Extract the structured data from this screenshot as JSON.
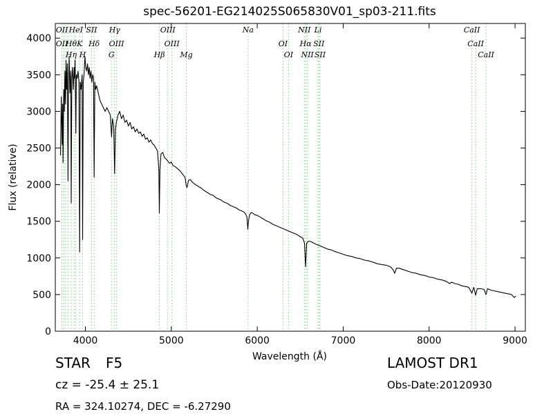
{
  "chart_data": {
    "type": "line",
    "title": "spec-56201-EG214025S065830V01_sp03-211.fits",
    "xlabel": "Wavelength (Å)",
    "ylabel": "Flux (relative)",
    "xlim": [
      3650,
      9120
    ],
    "ylim": [
      0,
      4200
    ],
    "xticks": [
      4000,
      5000,
      6000,
      7000,
      8000,
      9000
    ],
    "yticks": [
      0,
      500,
      1000,
      1500,
      2000,
      2500,
      3000,
      3500,
      4000
    ],
    "grid": false,
    "series": [
      {
        "color": "#000000",
        "points": [
          [
            3710,
            2400
          ],
          [
            3720,
            3200
          ],
          [
            3730,
            2550
          ],
          [
            3735,
            3100
          ],
          [
            3740,
            2300
          ],
          [
            3748,
            3300
          ],
          [
            3755,
            3000
          ],
          [
            3762,
            3550
          ],
          [
            3770,
            3100
          ],
          [
            3775,
            3700
          ],
          [
            3782,
            3300
          ],
          [
            3790,
            3650
          ],
          [
            3798,
            2050
          ],
          [
            3804,
            3400
          ],
          [
            3812,
            3750
          ],
          [
            3820,
            3250
          ],
          [
            3830,
            3550
          ],
          [
            3835,
            1750
          ],
          [
            3842,
            3450
          ],
          [
            3850,
            3600
          ],
          [
            3860,
            3300
          ],
          [
            3870,
            3600
          ],
          [
            3875,
            3450
          ],
          [
            3880,
            3700
          ],
          [
            3889,
            2700
          ],
          [
            3895,
            3500
          ],
          [
            3905,
            3450
          ],
          [
            3915,
            3550
          ],
          [
            3925,
            3400
          ],
          [
            3933,
            1080
          ],
          [
            3940,
            3400
          ],
          [
            3950,
            3300
          ],
          [
            3962,
            3500
          ],
          [
            3968,
            1250
          ],
          [
            3975,
            3400
          ],
          [
            3985,
            3500
          ],
          [
            3995,
            3750
          ],
          [
            4005,
            3600
          ],
          [
            4015,
            3550
          ],
          [
            4025,
            3650
          ],
          [
            4035,
            3500
          ],
          [
            4045,
            3600
          ],
          [
            4055,
            3450
          ],
          [
            4065,
            3550
          ],
          [
            4075,
            3400
          ],
          [
            4085,
            3500
          ],
          [
            4095,
            3450
          ],
          [
            4102,
            2100
          ],
          [
            4110,
            3400
          ],
          [
            4120,
            3300
          ],
          [
            4130,
            3350
          ],
          [
            4150,
            3250
          ],
          [
            4170,
            3150
          ],
          [
            4190,
            3100
          ],
          [
            4210,
            3050
          ],
          [
            4230,
            3000
          ],
          [
            4250,
            3050
          ],
          [
            4270,
            3000
          ],
          [
            4290,
            2950
          ],
          [
            4305,
            2650
          ],
          [
            4315,
            2900
          ],
          [
            4330,
            2800
          ],
          [
            4340,
            2150
          ],
          [
            4350,
            2750
          ],
          [
            4360,
            2850
          ],
          [
            4380,
            2950
          ],
          [
            4400,
            3000
          ],
          [
            4420,
            2900
          ],
          [
            4440,
            2950
          ],
          [
            4460,
            2850
          ],
          [
            4480,
            2880
          ],
          [
            4500,
            2800
          ],
          [
            4520,
            2850
          ],
          [
            4540,
            2760
          ],
          [
            4560,
            2790
          ],
          [
            4580,
            2720
          ],
          [
            4600,
            2760
          ],
          [
            4620,
            2700
          ],
          [
            4640,
            2720
          ],
          [
            4660,
            2660
          ],
          [
            4680,
            2690
          ],
          [
            4700,
            2620
          ],
          [
            4720,
            2640
          ],
          [
            4740,
            2580
          ],
          [
            4760,
            2610
          ],
          [
            4780,
            2560
          ],
          [
            4800,
            2540
          ],
          [
            4820,
            2500
          ],
          [
            4840,
            2460
          ],
          [
            4855,
            2200
          ],
          [
            4861,
            1610
          ],
          [
            4868,
            2200
          ],
          [
            4880,
            2420
          ],
          [
            4900,
            2440
          ],
          [
            4920,
            2370
          ],
          [
            4940,
            2350
          ],
          [
            4960,
            2320
          ],
          [
            4980,
            2290
          ],
          [
            5000,
            2310
          ],
          [
            5020,
            2260
          ],
          [
            5040,
            2250
          ],
          [
            5060,
            2230
          ],
          [
            5080,
            2210
          ],
          [
            5100,
            2190
          ],
          [
            5120,
            2160
          ],
          [
            5140,
            2130
          ],
          [
            5160,
            2100
          ],
          [
            5173,
            1990
          ],
          [
            5183,
            1960
          ],
          [
            5200,
            2060
          ],
          [
            5220,
            2070
          ],
          [
            5240,
            2040
          ],
          [
            5260,
            2020
          ],
          [
            5280,
            2000
          ],
          [
            5300,
            1990
          ],
          [
            5320,
            1970
          ],
          [
            5340,
            1960
          ],
          [
            5360,
            1940
          ],
          [
            5380,
            1920
          ],
          [
            5400,
            1910
          ],
          [
            5420,
            1890
          ],
          [
            5440,
            1880
          ],
          [
            5460,
            1860
          ],
          [
            5480,
            1860
          ],
          [
            5500,
            1840
          ],
          [
            5520,
            1820
          ],
          [
            5540,
            1810
          ],
          [
            5560,
            1800
          ],
          [
            5580,
            1790
          ],
          [
            5600,
            1770
          ],
          [
            5620,
            1760
          ],
          [
            5640,
            1750
          ],
          [
            5660,
            1740
          ],
          [
            5680,
            1720
          ],
          [
            5700,
            1710
          ],
          [
            5720,
            1700
          ],
          [
            5740,
            1690
          ],
          [
            5760,
            1680
          ],
          [
            5780,
            1660
          ],
          [
            5800,
            1650
          ],
          [
            5820,
            1640
          ],
          [
            5840,
            1630
          ],
          [
            5860,
            1610
          ],
          [
            5880,
            1560
          ],
          [
            5890,
            1390
          ],
          [
            5896,
            1480
          ],
          [
            5910,
            1590
          ],
          [
            5930,
            1620
          ],
          [
            5950,
            1610
          ],
          [
            5970,
            1590
          ],
          [
            6000,
            1580
          ],
          [
            6030,
            1560
          ],
          [
            6060,
            1540
          ],
          [
            6100,
            1510
          ],
          [
            6140,
            1490
          ],
          [
            6180,
            1460
          ],
          [
            6220,
            1440
          ],
          [
            6260,
            1420
          ],
          [
            6300,
            1400
          ],
          [
            6340,
            1380
          ],
          [
            6380,
            1360
          ],
          [
            6420,
            1340
          ],
          [
            6460,
            1320
          ],
          [
            6500,
            1290
          ],
          [
            6530,
            1270
          ],
          [
            6550,
            1200
          ],
          [
            6563,
            880
          ],
          [
            6575,
            1200
          ],
          [
            6600,
            1230
          ],
          [
            6630,
            1220
          ],
          [
            6660,
            1200
          ],
          [
            6700,
            1180
          ],
          [
            6740,
            1160
          ],
          [
            6780,
            1140
          ],
          [
            6820,
            1120
          ],
          [
            6860,
            1110
          ],
          [
            6900,
            1090
          ],
          [
            6950,
            1070
          ],
          [
            7000,
            1050
          ],
          [
            7050,
            1030
          ],
          [
            7100,
            1020
          ],
          [
            7150,
            1000
          ],
          [
            7200,
            990
          ],
          [
            7250,
            970
          ],
          [
            7300,
            960
          ],
          [
            7350,
            940
          ],
          [
            7400,
            920
          ],
          [
            7450,
            910
          ],
          [
            7500,
            900
          ],
          [
            7550,
            880
          ],
          [
            7580,
            840
          ],
          [
            7600,
            790
          ],
          [
            7620,
            860
          ],
          [
            7650,
            860
          ],
          [
            7700,
            840
          ],
          [
            7750,
            820
          ],
          [
            7800,
            800
          ],
          [
            7850,
            790
          ],
          [
            7900,
            770
          ],
          [
            7950,
            760
          ],
          [
            8000,
            740
          ],
          [
            8050,
            730
          ],
          [
            8100,
            710
          ],
          [
            8150,
            700
          ],
          [
            8200,
            680
          ],
          [
            8240,
            650
          ],
          [
            8260,
            670
          ],
          [
            8300,
            650
          ],
          [
            8340,
            640
          ],
          [
            8380,
            620
          ],
          [
            8420,
            610
          ],
          [
            8460,
            600
          ],
          [
            8498,
            520
          ],
          [
            8520,
            600
          ],
          [
            8542,
            490
          ],
          [
            8560,
            580
          ],
          [
            8600,
            580
          ],
          [
            8640,
            570
          ],
          [
            8662,
            500
          ],
          [
            8680,
            580
          ],
          [
            8720,
            560
          ],
          [
            8760,
            550
          ],
          [
            8800,
            540
          ],
          [
            8840,
            530
          ],
          [
            8880,
            520
          ],
          [
            8920,
            510
          ],
          [
            8960,
            500
          ],
          [
            8990,
            460
          ],
          [
            9010,
            480
          ]
        ]
      }
    ],
    "lines": [
      {
        "x": 3727,
        "labels": [
          "OII",
          "OII"
        ]
      },
      {
        "x": 3750,
        "labels": []
      },
      {
        "x": 3771,
        "labels": []
      },
      {
        "x": 3798,
        "labels": []
      },
      {
        "x": 3835,
        "labels": [
          "Hθ",
          "Hη"
        ]
      },
      {
        "x": 3869,
        "labels": []
      },
      {
        "x": 3889,
        "labels": [
          "HeI"
        ]
      },
      {
        "x": 3933,
        "labels": [
          "K"
        ]
      },
      {
        "x": 3968,
        "labels": [
          "H"
        ]
      },
      {
        "x": 4072,
        "labels": [
          "SII"
        ]
      },
      {
        "x": 4102,
        "labels": [
          "Hδ"
        ]
      },
      {
        "x": 4304,
        "labels": [
          "G"
        ]
      },
      {
        "x": 4340,
        "labels": [
          "Hγ"
        ]
      },
      {
        "x": 4363,
        "labels": [
          "OIII"
        ]
      },
      {
        "x": 4861,
        "labels": [
          "Hβ"
        ]
      },
      {
        "x": 4959,
        "labels": [
          "OIII"
        ]
      },
      {
        "x": 5007,
        "labels": [
          "OIII"
        ]
      },
      {
        "x": 5175,
        "labels": [
          "Mg"
        ]
      },
      {
        "x": 5893,
        "labels": [
          "Na"
        ]
      },
      {
        "x": 6300,
        "labels": [
          "OI"
        ]
      },
      {
        "x": 6364,
        "labels": [
          "OI"
        ]
      },
      {
        "x": 6548,
        "labels": [
          "NII"
        ]
      },
      {
        "x": 6563,
        "labels": [
          "Hα"
        ]
      },
      {
        "x": 6583,
        "labels": [
          "NII"
        ]
      },
      {
        "x": 6707,
        "labels": [
          "Li"
        ]
      },
      {
        "x": 6717,
        "labels": [
          "SII"
        ]
      },
      {
        "x": 6731,
        "labels": [
          "SII"
        ]
      },
      {
        "x": 8498,
        "labels": [
          "CaII"
        ]
      },
      {
        "x": 8542,
        "labels": [
          "CaII"
        ]
      },
      {
        "x": 8662,
        "labels": [
          "CaII"
        ]
      }
    ],
    "line_color": "#7fcf7f"
  },
  "info": {
    "object_type": "STAR",
    "subclass": "F5",
    "survey": "LAMOST DR1",
    "cz": "cz = -25.4 ± 25.1",
    "obs_date": "Obs-Date:20120930",
    "radec": "RA = 324.10274, DEC = -6.27290"
  }
}
